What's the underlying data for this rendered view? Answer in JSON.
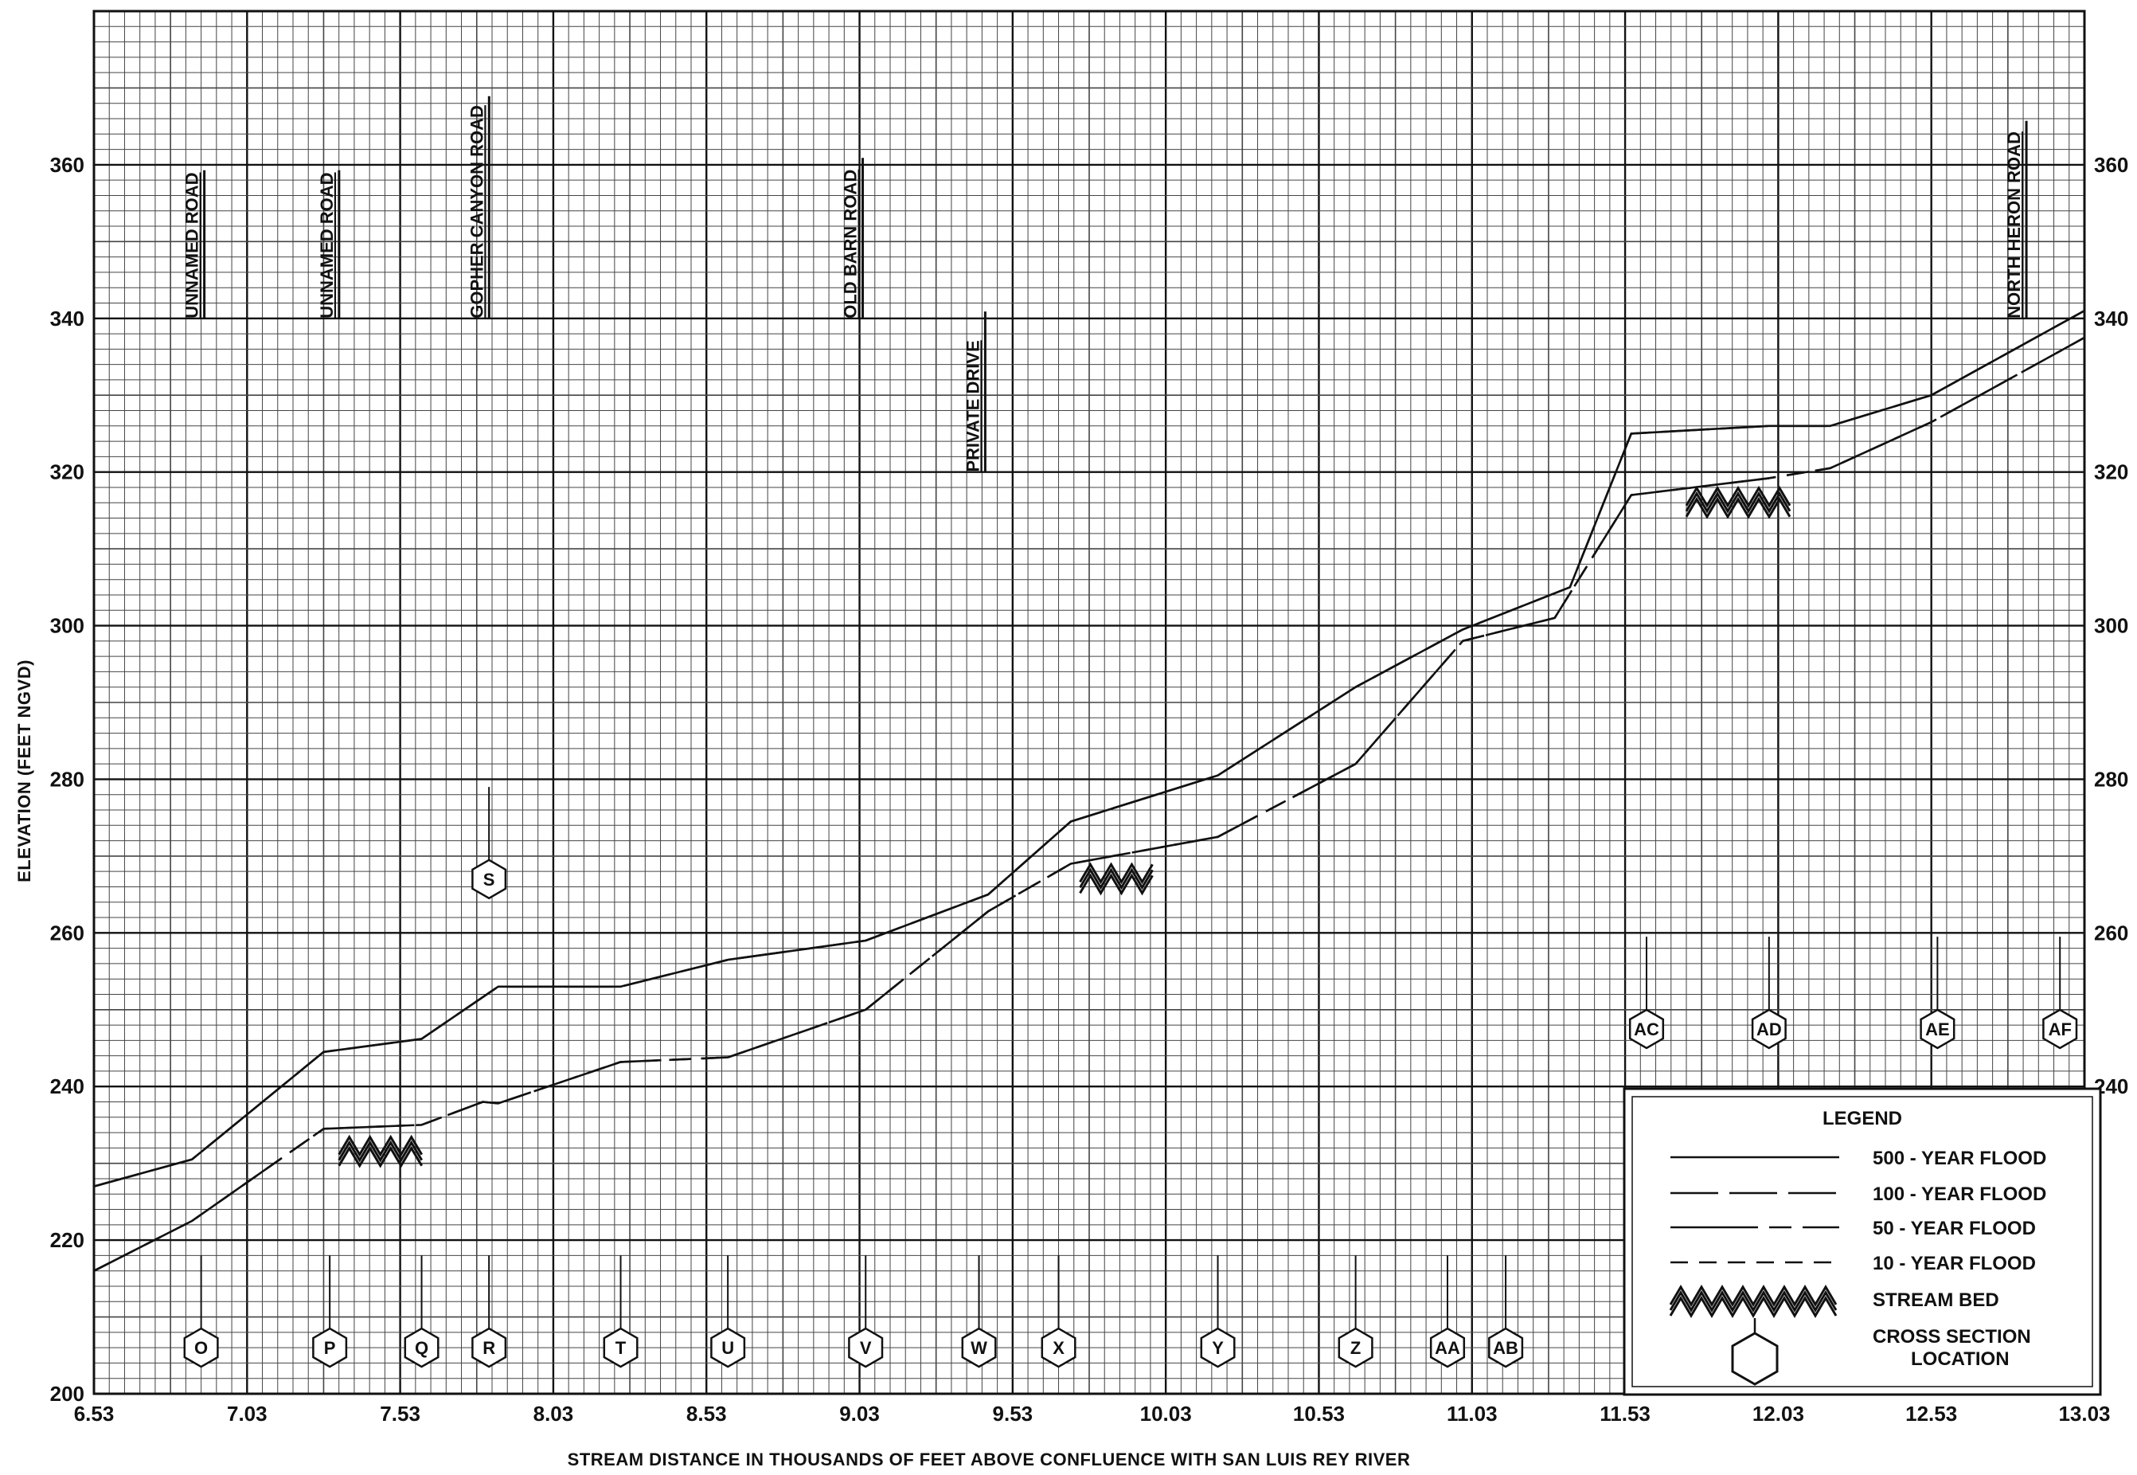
{
  "chart_data": {
    "type": "line",
    "ylabel": "ELEVATION (FEET NGVD)",
    "xlabel": "STREAM DISTANCE IN THOUSANDS OF FEET ABOVE CONFLUENCE WITH SAN LUIS REY RIVER",
    "xlim": [
      6.53,
      13.03
    ],
    "ylim": [
      200,
      380
    ],
    "x_ticks": [
      "6.53",
      "7.03",
      "7.53",
      "8.03",
      "8.53",
      "9.03",
      "9.53",
      "10.03",
      "10.53",
      "11.03",
      "11.53",
      "12.03",
      "12.53",
      "13.03"
    ],
    "y_ticks": [
      "200",
      "220",
      "240",
      "260",
      "280",
      "300",
      "320",
      "340",
      "360"
    ],
    "y_ticks_right": [
      "240",
      "260",
      "280",
      "300",
      "320",
      "340",
      "360"
    ],
    "series": [
      {
        "name": "500 - YEAR FLOOD",
        "style": "solid",
        "points": [
          [
            6.53,
            227
          ],
          [
            6.85,
            230.5
          ],
          [
            7.28,
            244.5
          ],
          [
            7.6,
            246.2
          ],
          [
            7.85,
            253
          ],
          [
            8.25,
            253
          ],
          [
            8.6,
            256.5
          ],
          [
            9.05,
            259
          ],
          [
            9.45,
            265
          ],
          [
            9.72,
            274.5
          ],
          [
            10.2,
            280.5
          ],
          [
            10.65,
            292
          ],
          [
            11.0,
            299.5
          ],
          [
            11.35,
            305
          ],
          [
            11.55,
            325
          ],
          [
            12.0,
            326
          ],
          [
            12.2,
            326
          ],
          [
            12.53,
            330
          ],
          [
            13.03,
            341
          ]
        ]
      },
      {
        "name": "100 - YEAR FLOOD",
        "style": "dashed",
        "points": [
          [
            6.53,
            227
          ],
          [
            6.85,
            230.5
          ],
          [
            7.28,
            244.5
          ],
          [
            7.6,
            246.2
          ],
          [
            7.85,
            253
          ],
          [
            8.25,
            253
          ],
          [
            8.6,
            256.5
          ],
          [
            9.05,
            259
          ],
          [
            9.45,
            265
          ],
          [
            9.72,
            274.5
          ],
          [
            10.2,
            280.5
          ],
          [
            10.65,
            292
          ],
          [
            11.0,
            299.5
          ],
          [
            11.35,
            305
          ],
          [
            11.55,
            325
          ],
          [
            12.0,
            326
          ],
          [
            12.2,
            326
          ],
          [
            12.53,
            330
          ],
          [
            13.03,
            341
          ]
        ]
      },
      {
        "name": "50 - YEAR FLOOD",
        "style": "dash-dot",
        "points": [
          [
            6.53,
            216
          ],
          [
            6.85,
            222.5
          ],
          [
            7.28,
            234.5
          ],
          [
            7.6,
            235
          ],
          [
            7.8,
            238
          ],
          [
            7.85,
            237.8
          ],
          [
            8.25,
            243.2
          ],
          [
            8.6,
            243.8
          ],
          [
            9.05,
            250
          ],
          [
            9.45,
            262.8
          ],
          [
            9.72,
            269
          ],
          [
            10.2,
            272.5
          ],
          [
            10.65,
            282
          ],
          [
            11.0,
            298
          ],
          [
            11.3,
            301
          ],
          [
            11.55,
            317
          ],
          [
            12.0,
            319.2
          ],
          [
            12.2,
            320.5
          ],
          [
            12.53,
            326.5
          ],
          [
            13.03,
            337.5
          ]
        ]
      },
      {
        "name": "10 - YEAR FLOOD",
        "style": "short-dashed",
        "points": [
          [
            6.53,
            216
          ],
          [
            6.85,
            222.5
          ],
          [
            7.28,
            234.5
          ],
          [
            7.6,
            235
          ],
          [
            7.8,
            238
          ],
          [
            7.85,
            237.8
          ],
          [
            8.25,
            243.2
          ],
          [
            8.6,
            243.8
          ],
          [
            9.05,
            250
          ],
          [
            9.45,
            262.8
          ],
          [
            9.72,
            269
          ],
          [
            10.2,
            272.5
          ],
          [
            10.65,
            282
          ],
          [
            11.0,
            298
          ],
          [
            11.3,
            301
          ],
          [
            11.55,
            317
          ],
          [
            12.0,
            319.2
          ],
          [
            12.2,
            320.5
          ],
          [
            12.53,
            326.5
          ],
          [
            13.03,
            337.5
          ]
        ]
      }
    ],
    "stream_bed": [
      {
        "x": [
          7.33,
          7.62
        ],
        "y": 233
      },
      {
        "x": [
          9.75,
          10.0
        ],
        "y": 268.5
      },
      {
        "x": [
          11.73,
          12.1
        ],
        "y": 317.5
      }
    ],
    "roads": [
      {
        "label": "UNNAMED ROAD",
        "x": 6.88,
        "y": 350
      },
      {
        "label": "UNNAMED ROAD",
        "x": 7.32,
        "y": 350
      },
      {
        "label": "GOPHER CANYON ROAD",
        "x": 7.81,
        "y": 350
      },
      {
        "label": "OLD BARN ROAD",
        "x": 9.03,
        "y": 350
      },
      {
        "label": "PRIVATE DRIVE",
        "x": 9.43,
        "y": 330
      },
      {
        "label": "NORTH HERON ROAD",
        "x": 12.83,
        "y": 355
      }
    ],
    "cross_sections": [
      {
        "label": "O",
        "x": 6.88,
        "y": 206,
        "line_top": 218
      },
      {
        "label": "P",
        "x": 7.3,
        "y": 206,
        "line_top": 218
      },
      {
        "label": "Q",
        "x": 7.6,
        "y": 206,
        "line_top": 218
      },
      {
        "label": "R",
        "x": 7.82,
        "y": 206,
        "line_top": 218
      },
      {
        "label": "T",
        "x": 8.25,
        "y": 206,
        "line_top": 218
      },
      {
        "label": "U",
        "x": 8.6,
        "y": 206,
        "line_top": 218
      },
      {
        "label": "V",
        "x": 9.05,
        "y": 206,
        "line_top": 218
      },
      {
        "label": "W",
        "x": 9.42,
        "y": 206,
        "line_top": 218
      },
      {
        "label": "X",
        "x": 9.68,
        "y": 206,
        "line_top": 218
      },
      {
        "label": "Y",
        "x": 10.2,
        "y": 206,
        "line_top": 218
      },
      {
        "label": "Z",
        "x": 10.65,
        "y": 206,
        "line_top": 218
      },
      {
        "label": "AA",
        "x": 10.95,
        "y": 206,
        "line_top": 218
      },
      {
        "label": "AB",
        "x": 11.14,
        "y": 206,
        "line_top": 218
      },
      {
        "label": "S",
        "x": 7.82,
        "y": 267,
        "line_top": 279
      },
      {
        "label": "AC",
        "x": 11.6,
        "y": 247.5,
        "line_top": 259.5
      },
      {
        "label": "AD",
        "x": 12.0,
        "y": 247.5,
        "line_top": 259.5
      },
      {
        "label": "AE",
        "x": 12.55,
        "y": 247.5,
        "line_top": 259.5
      },
      {
        "label": "AF",
        "x": 12.95,
        "y": 247.5,
        "line_top": 259.5
      }
    ],
    "legend": {
      "title": "LEGEND",
      "placement": "bottom-right",
      "items": [
        "500 - YEAR FLOOD",
        "100 - YEAR FLOOD",
        "50 - YEAR FLOOD",
        "10 - YEAR FLOOD",
        "STREAM BED",
        "CROSS SECTION LOCATION"
      ]
    }
  }
}
